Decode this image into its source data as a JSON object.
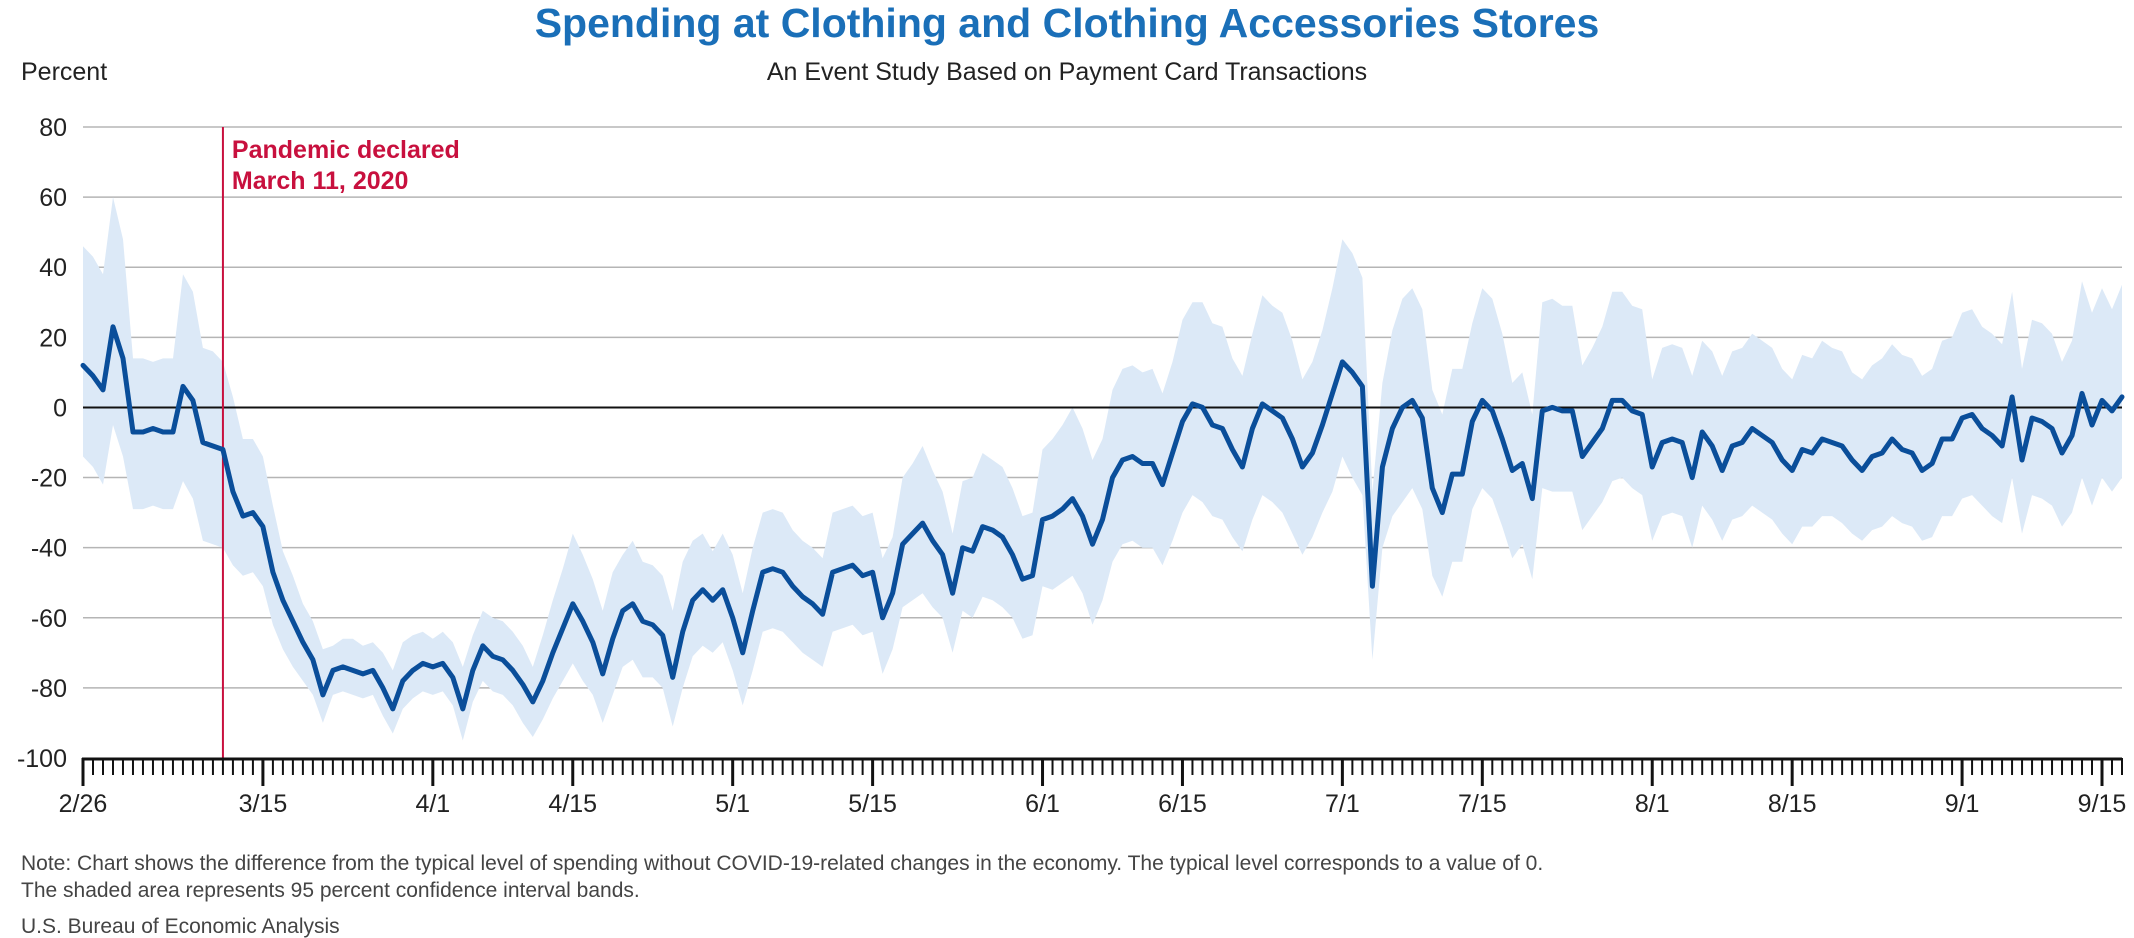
{
  "title": "Spending at Clothing and Clothing Accessories Stores",
  "subtitle": "An Event Study Based on Payment Card Transactions",
  "note_line1": "Note: Chart shows the difference from the typical level of spending without COVID-19-related changes in the economy. The typical level corresponds to a value of 0.",
  "note_line2": "The shaded area represents 95 percent confidence interval bands.",
  "source": "U.S. Bureau of Economic Analysis",
  "colors": {
    "line": "#0a4e9a",
    "band": "#dce9f7",
    "event": "#c8103e",
    "grid": "#b5b5b5",
    "title": "#1a6fb8"
  },
  "chart_data": {
    "type": "line",
    "ylabel": "Percent",
    "ylim": [
      -100,
      80
    ],
    "yticks": [
      80,
      60,
      40,
      20,
      0,
      -20,
      -40,
      -60,
      -80,
      -100
    ],
    "x_start": "2/26",
    "x_end": "9/16",
    "xtick_labels": [
      {
        "label": "2/26",
        "day": 0
      },
      {
        "label": "3/15",
        "day": 18
      },
      {
        "label": "4/1",
        "day": 35
      },
      {
        "label": "4/15",
        "day": 49
      },
      {
        "label": "5/1",
        "day": 65
      },
      {
        "label": "5/15",
        "day": 79
      },
      {
        "label": "6/1",
        "day": 96
      },
      {
        "label": "6/15",
        "day": 110
      },
      {
        "label": "7/1",
        "day": 126
      },
      {
        "label": "7/15",
        "day": 140
      },
      {
        "label": "8/1",
        "day": 157
      },
      {
        "label": "8/15",
        "day": 171
      },
      {
        "label": "9/1",
        "day": 188
      },
      {
        "label": "9/15",
        "day": 202
      }
    ],
    "event": {
      "day": 14,
      "line1": "Pandemic declared",
      "line2": "March 11, 2020"
    },
    "grid": true,
    "series": [
      {
        "values": [
          12,
          9,
          5,
          23,
          14,
          -7,
          -7,
          -6,
          -7,
          -7,
          6,
          2,
          -10,
          -11,
          -12,
          -24,
          -31,
          -30,
          -34,
          -47,
          -55,
          -61,
          -67,
          -72,
          -82,
          -75,
          -74,
          -75,
          -76,
          -75,
          -80,
          -86,
          -78,
          -75,
          -73,
          -74,
          -73,
          -77,
          -86,
          -75,
          -68,
          -71,
          -72,
          -75,
          -79,
          -84,
          -78,
          -70,
          -63,
          -56,
          -61,
          -67,
          -76,
          -66,
          -58,
          -56,
          -61,
          -62,
          -65,
          -77,
          -64,
          -55,
          -52,
          -55,
          -52,
          -60,
          -70,
          -58,
          -47,
          -46,
          -47,
          -51,
          -54,
          -56,
          -59,
          -47,
          -46,
          -45,
          -48,
          -47,
          -60,
          -53,
          -39,
          -36,
          -33,
          -38,
          -42,
          -53,
          -40,
          -41,
          -34,
          -35,
          -37,
          -42,
          -49,
          -48,
          -32,
          -31,
          -29,
          -26,
          -31,
          -39,
          -32,
          -20,
          -15,
          -14,
          -16,
          -16,
          -22,
          -13,
          -4,
          1,
          0,
          -5,
          -6,
          -12,
          -17,
          -6,
          1,
          -1,
          -3,
          -9,
          -17,
          -13,
          -5,
          4,
          13,
          10,
          6,
          -51,
          -17,
          -6,
          0,
          2,
          -3,
          -23,
          -30,
          -19,
          -19,
          -4,
          2,
          -1,
          -9,
          -18,
          -16,
          -26,
          -1,
          0,
          -1,
          -1,
          -14,
          -10,
          -6,
          2,
          2,
          -1,
          -2,
          -17,
          -10,
          -9,
          -10,
          -20,
          -7,
          -11,
          -18,
          -11,
          -10,
          -6,
          -8,
          -10,
          -15,
          -18,
          -12,
          -13,
          -9,
          -10,
          -11,
          -15,
          -18,
          -14,
          -13,
          -9,
          -12,
          -13,
          -18,
          -16,
          -9,
          -9,
          -3,
          -2,
          -6,
          -8,
          -11,
          3,
          -15,
          -3,
          -4,
          -6,
          -13,
          -8,
          4,
          -5,
          2,
          -1,
          3
        ],
        "upper": [
          46,
          43,
          38,
          60,
          48,
          14,
          14,
          13,
          14,
          14,
          38,
          33,
          17,
          16,
          13,
          3,
          -9,
          -9,
          -14,
          -28,
          -41,
          -48,
          -56,
          -61,
          -69,
          -68,
          -66,
          -66,
          -68,
          -67,
          -70,
          -75,
          -67,
          -65,
          -64,
          -66,
          -64,
          -67,
          -74,
          -65,
          -58,
          -60,
          -61,
          -64,
          -68,
          -74,
          -65,
          -55,
          -46,
          -36,
          -42,
          -49,
          -58,
          -47,
          -42,
          -38,
          -44,
          -45,
          -48,
          -58,
          -44,
          -38,
          -36,
          -41,
          -36,
          -42,
          -53,
          -40,
          -30,
          -29,
          -30,
          -35,
          -38,
          -40,
          -43,
          -30,
          -29,
          -28,
          -31,
          -30,
          -43,
          -37,
          -20,
          -16,
          -11,
          -18,
          -24,
          -36,
          -21,
          -20,
          -13,
          -15,
          -17,
          -23,
          -31,
          -30,
          -12,
          -9,
          -5,
          0,
          -6,
          -15,
          -9,
          5,
          11,
          12,
          10,
          11,
          4,
          13,
          25,
          30,
          30,
          24,
          23,
          14,
          9,
          21,
          32,
          29,
          27,
          19,
          8,
          13,
          22,
          34,
          48,
          44,
          37,
          -24,
          7,
          22,
          31,
          34,
          28,
          5,
          -2,
          11,
          11,
          24,
          34,
          31,
          21,
          7,
          10,
          -2,
          30,
          31,
          29,
          29,
          12,
          17,
          23,
          33,
          33,
          29,
          28,
          8,
          17,
          18,
          17,
          9,
          19,
          16,
          9,
          16,
          17,
          21,
          19,
          17,
          11,
          8,
          15,
          14,
          19,
          17,
          16,
          10,
          8,
          12,
          14,
          18,
          15,
          14,
          9,
          11,
          19,
          20,
          27,
          28,
          23,
          21,
          18,
          33,
          11,
          25,
          24,
          21,
          13,
          19,
          36,
          27,
          34,
          28,
          35
        ],
        "lower": [
          -14,
          -17,
          -22,
          -5,
          -14,
          -29,
          -29,
          -28,
          -29,
          -29,
          -21,
          -26,
          -38,
          -39,
          -40,
          -45,
          -48,
          -47,
          -51,
          -62,
          -69,
          -74,
          -78,
          -82,
          -90,
          -82,
          -81,
          -82,
          -83,
          -82,
          -88,
          -93,
          -86,
          -83,
          -81,
          -82,
          -81,
          -85,
          -95,
          -84,
          -78,
          -81,
          -82,
          -85,
          -90,
          -94,
          -89,
          -83,
          -78,
          -73,
          -78,
          -82,
          -90,
          -82,
          -74,
          -72,
          -77,
          -77,
          -80,
          -91,
          -80,
          -71,
          -68,
          -70,
          -67,
          -75,
          -85,
          -75,
          -64,
          -63,
          -64,
          -67,
          -70,
          -72,
          -74,
          -64,
          -63,
          -62,
          -65,
          -64,
          -76,
          -69,
          -57,
          -55,
          -53,
          -57,
          -60,
          -70,
          -58,
          -60,
          -54,
          -55,
          -57,
          -60,
          -66,
          -65,
          -51,
          -52,
          -50,
          -48,
          -53,
          -62,
          -55,
          -44,
          -39,
          -38,
          -40,
          -40,
          -45,
          -38,
          -30,
          -25,
          -27,
          -31,
          -32,
          -37,
          -41,
          -32,
          -25,
          -27,
          -30,
          -36,
          -42,
          -37,
          -30,
          -24,
          -14,
          -20,
          -25,
          -72,
          -40,
          -31,
          -27,
          -23,
          -29,
          -48,
          -54,
          -44,
          -44,
          -29,
          -23,
          -26,
          -34,
          -43,
          -39,
          -49,
          -23,
          -24,
          -24,
          -24,
          -35,
          -31,
          -27,
          -21,
          -20,
          -23,
          -25,
          -38,
          -31,
          -30,
          -31,
          -40,
          -28,
          -32,
          -38,
          -32,
          -31,
          -28,
          -30,
          -32,
          -36,
          -39,
          -34,
          -34,
          -31,
          -31,
          -33,
          -36,
          -38,
          -35,
          -34,
          -31,
          -33,
          -34,
          -38,
          -37,
          -31,
          -31,
          -26,
          -25,
          -28,
          -31,
          -33,
          -20,
          -36,
          -25,
          -26,
          -28,
          -34,
          -30,
          -20,
          -28,
          -20,
          -24,
          -20
        ]
      }
    ]
  }
}
